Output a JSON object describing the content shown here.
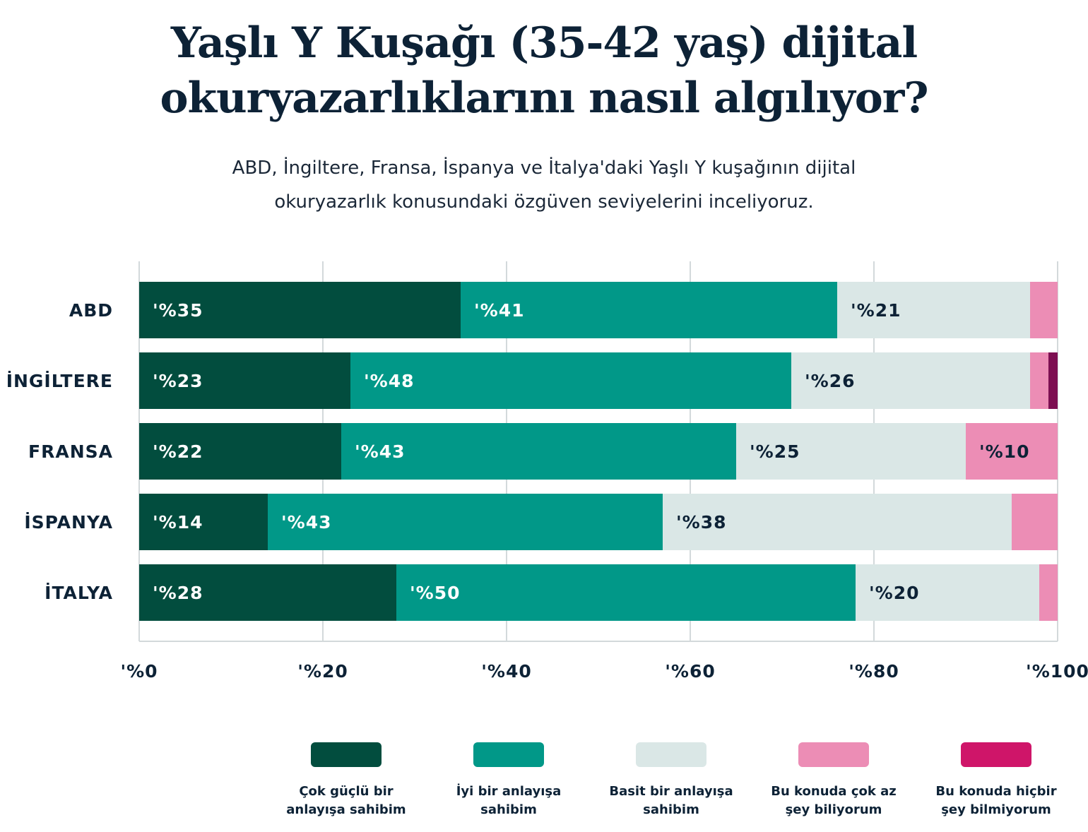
{
  "title": "Yaşlı Y Kuşağı (35-42 yaş) dijital okuryazarlıklarını nasıl algılıyor?",
  "subtitle": "ABD, İngiltere, Fransa, İspanya ve İtalya'daki Yaşlı Y kuşağının dijital okuryazarlık konusundaki özgüven seviyelerini inceliyoruz.",
  "chart_data": {
    "type": "bar",
    "orientation": "horizontal",
    "stacked": true,
    "categories": [
      "ABD",
      "İNGİLTERE",
      "FRANSA",
      "İSPANYA",
      "İTALYA"
    ],
    "series": [
      {
        "name": "Çok güçlü bir anlayışa sahibim",
        "color": "#024d3e",
        "label_color": "#ffffff",
        "values": [
          35,
          23,
          22,
          14,
          28
        ]
      },
      {
        "name": "İyi bir anlayışa sahibim",
        "color": "#019888",
        "label_color": "#ffffff",
        "values": [
          41,
          48,
          43,
          43,
          50
        ]
      },
      {
        "name": "Basit bir anlayışa sahibim",
        "color": "#dae7e6",
        "label_color": "#0d2236",
        "values": [
          21,
          26,
          25,
          38,
          20
        ]
      },
      {
        "name": "Bu konuda çok az şey biliyorum",
        "color": "#ec8db5",
        "label_color": "#0d2236",
        "values": [
          3,
          2,
          10,
          5,
          2
        ]
      },
      {
        "name": "Bu konuda hiçbir şey bilmiyorum",
        "color": "#7d0f52",
        "legend_color": "#cf1569",
        "label_color": "#ffffff",
        "values": [
          0,
          1,
          0,
          0,
          0
        ]
      }
    ],
    "labels_shown_min": 10,
    "label_format": "'%{v}",
    "xlim": [
      0,
      100
    ],
    "xticks": [
      "'%0",
      "'%20",
      "'%40",
      "'%60",
      "'%80",
      "'%100"
    ],
    "xtick_values": [
      0,
      20,
      40,
      60,
      80,
      100
    ],
    "grid": true,
    "legend_position": "bottom"
  }
}
